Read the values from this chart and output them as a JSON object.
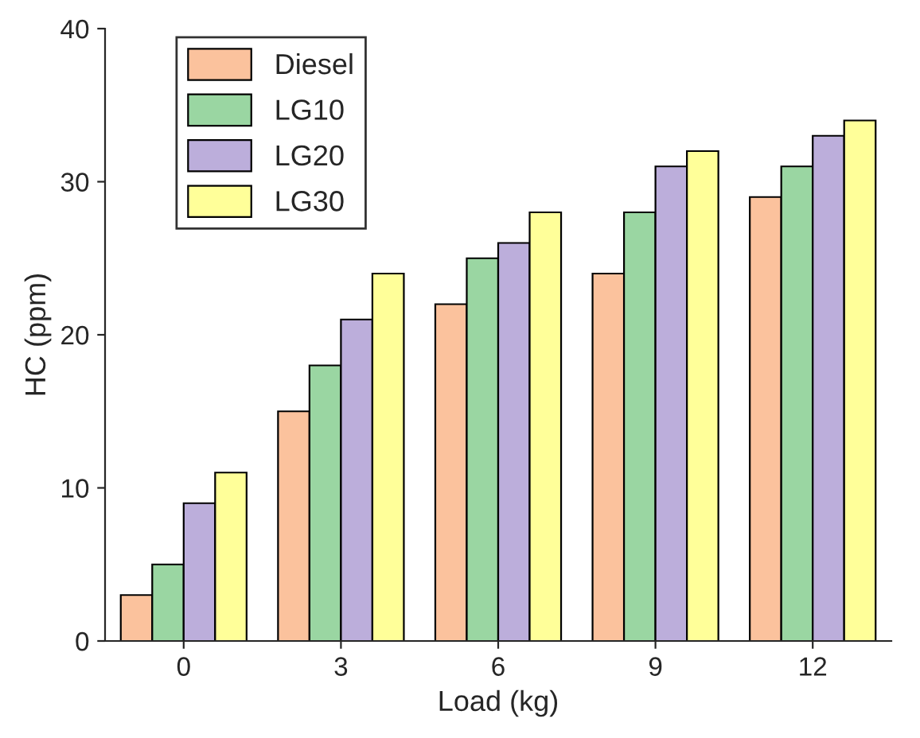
{
  "chart_data": {
    "type": "bar",
    "xlabel": "Load (kg)",
    "ylabel": "HC (ppm)",
    "categories": [
      "0",
      "3",
      "6",
      "9",
      "12"
    ],
    "series": [
      {
        "name": "Diesel",
        "color": "#fbc29d",
        "values": [
          3,
          15,
          22,
          24,
          29
        ]
      },
      {
        "name": "LG10",
        "color": "#9ad6a2",
        "values": [
          5,
          18,
          25,
          28,
          31
        ]
      },
      {
        "name": "LG20",
        "color": "#bcaedb",
        "values": [
          9,
          21,
          26,
          31,
          33
        ]
      },
      {
        "name": "LG30",
        "color": "#ffff99",
        "values": [
          11,
          24,
          28,
          32,
          34
        ]
      }
    ],
    "ylim": [
      0,
      40
    ],
    "yticks": [
      0,
      10,
      20,
      30,
      40
    ],
    "grid": false,
    "legend": "top left"
  }
}
